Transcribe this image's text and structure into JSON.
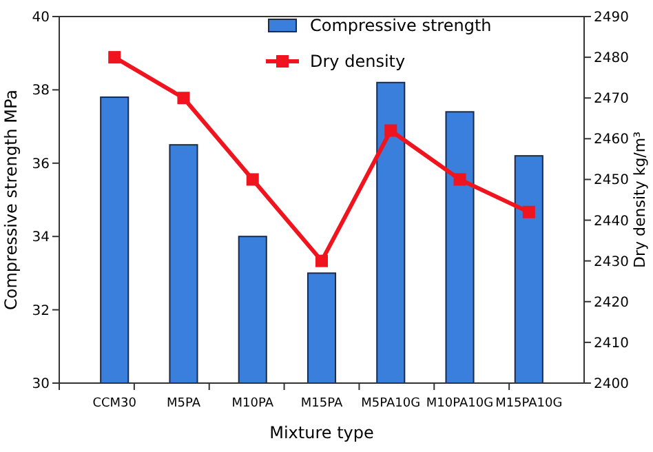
{
  "chart_data": {
    "type": "bar",
    "xlabel": "Mixture type",
    "ylabel": "Compressive strength MPa",
    "y2label": "Dry density kg/m³",
    "categories": [
      "CCM30",
      "M5PA",
      "M10PA",
      "M15PA",
      "M5PA10G",
      "M10PA10G",
      "M15PA10G"
    ],
    "series": [
      {
        "name": "Compressive strength",
        "color": "#3a7fdc",
        "values": [
          37.8,
          36.5,
          34.0,
          33.0,
          38.2,
          37.4,
          36.2
        ]
      },
      {
        "name": "Dry density",
        "type": "line",
        "axis": "y2",
        "color": "#f0141e",
        "values": [
          2480,
          2470,
          2450,
          2430,
          2462,
          2450,
          2442
        ]
      }
    ],
    "ylim": [
      30,
      40
    ],
    "yticks": [
      30,
      32,
      34,
      36,
      38,
      40
    ],
    "y2lim": [
      2400,
      2490
    ],
    "y2ticks": [
      2400,
      2410,
      2420,
      2430,
      2440,
      2450,
      2460,
      2470,
      2480,
      2490
    ],
    "marker": "square",
    "legend": "top right",
    "grid": false
  }
}
